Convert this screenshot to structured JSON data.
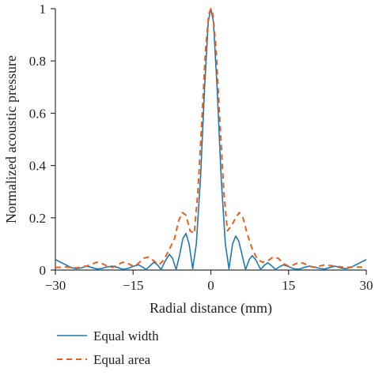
{
  "chart_data": {
    "type": "line",
    "title": "",
    "xlabel": "Radial distance (mm)",
    "ylabel": "Normalized acoustic pressure",
    "xlim": [
      -30,
      30
    ],
    "ylim": [
      0,
      1
    ],
    "x_ticks": [
      -30,
      -15,
      0,
      15,
      30
    ],
    "x_tick_labels": [
      "−30",
      "−15",
      "0",
      "15",
      "30"
    ],
    "y_ticks": [
      0,
      0.2,
      0.4,
      0.6,
      0.8,
      1
    ],
    "y_tick_labels": [
      "0",
      "0.2",
      "0.4",
      "0.6",
      "0.8",
      "1"
    ],
    "grid": false,
    "legend_position": "bottom-left",
    "series": [
      {
        "name": "Equal width",
        "color": "#1f77b4",
        "style": "solid",
        "points": [
          [
            -30,
            0.04
          ],
          [
            -29,
            0.03
          ],
          [
            -28,
            0.02
          ],
          [
            -27,
            0.01
          ],
          [
            -26,
            0.005
          ],
          [
            -25,
            0.008
          ],
          [
            -24,
            0.015
          ],
          [
            -23,
            0.01
          ],
          [
            -22,
            0.004
          ],
          [
            -21,
            0.006
          ],
          [
            -20,
            0.012
          ],
          [
            -19,
            0.015
          ],
          [
            -18,
            0.01
          ],
          [
            -17,
            0.003
          ],
          [
            -16,
            0.006
          ],
          [
            -15,
            0.014
          ],
          [
            -14,
            0.02
          ],
          [
            -13.2,
            0.012
          ],
          [
            -12.5,
            0.002
          ],
          [
            -11.8,
            0.015
          ],
          [
            -11,
            0.03
          ],
          [
            -10.3,
            0.02
          ],
          [
            -9.6,
            0.002
          ],
          [
            -8.8,
            0.035
          ],
          [
            -8,
            0.06
          ],
          [
            -7.4,
            0.045
          ],
          [
            -6.7,
            0.002
          ],
          [
            -6,
            0.06
          ],
          [
            -5.4,
            0.12
          ],
          [
            -4.8,
            0.14
          ],
          [
            -4.2,
            0.1
          ],
          [
            -3.5,
            0.005
          ],
          [
            -2.8,
            0.1
          ],
          [
            -2,
            0.35
          ],
          [
            -1.2,
            0.7
          ],
          [
            -0.5,
            0.95
          ],
          [
            0,
            1
          ],
          [
            0.5,
            0.95
          ],
          [
            1.2,
            0.7
          ],
          [
            2,
            0.35
          ],
          [
            2.8,
            0.1
          ],
          [
            3.5,
            0.005
          ],
          [
            4.2,
            0.1
          ],
          [
            4.8,
            0.13
          ],
          [
            5.4,
            0.11
          ],
          [
            6,
            0.06
          ],
          [
            6.7,
            0.002
          ],
          [
            7.4,
            0.04
          ],
          [
            8,
            0.055
          ],
          [
            8.8,
            0.035
          ],
          [
            9.6,
            0.002
          ],
          [
            10.3,
            0.018
          ],
          [
            11,
            0.028
          ],
          [
            11.8,
            0.015
          ],
          [
            12.5,
            0.002
          ],
          [
            13.2,
            0.012
          ],
          [
            14,
            0.02
          ],
          [
            15,
            0.013
          ],
          [
            16,
            0.005
          ],
          [
            17,
            0.003
          ],
          [
            18,
            0.01
          ],
          [
            19,
            0.015
          ],
          [
            20,
            0.012
          ],
          [
            21,
            0.006
          ],
          [
            22,
            0.004
          ],
          [
            23,
            0.01
          ],
          [
            24,
            0.015
          ],
          [
            25,
            0.008
          ],
          [
            26,
            0.005
          ],
          [
            27,
            0.01
          ],
          [
            28,
            0.02
          ],
          [
            29,
            0.03
          ],
          [
            30,
            0.04
          ]
        ]
      },
      {
        "name": "Equal area",
        "color": "#e8601c",
        "style": "dashed",
        "points": [
          [
            -30,
            0.01
          ],
          [
            -28,
            0.012
          ],
          [
            -26,
            0.008
          ],
          [
            -24,
            0.015
          ],
          [
            -22,
            0.03
          ],
          [
            -21,
            0.025
          ],
          [
            -20,
            0.015
          ],
          [
            -19,
            0.01
          ],
          [
            -18,
            0.02
          ],
          [
            -17,
            0.03
          ],
          [
            -16,
            0.025
          ],
          [
            -15,
            0.015
          ],
          [
            -14,
            0.025
          ],
          [
            -13,
            0.045
          ],
          [
            -12,
            0.05
          ],
          [
            -11,
            0.035
          ],
          [
            -10,
            0.02
          ],
          [
            -9,
            0.04
          ],
          [
            -8,
            0.08
          ],
          [
            -7,
            0.12
          ],
          [
            -6.2,
            0.19
          ],
          [
            -5.5,
            0.22
          ],
          [
            -4.8,
            0.21
          ],
          [
            -4,
            0.15
          ],
          [
            -3.2,
            0.14
          ],
          [
            -2.5,
            0.3
          ],
          [
            -1.8,
            0.55
          ],
          [
            -1,
            0.85
          ],
          [
            -0.4,
            0.98
          ],
          [
            0,
            1
          ],
          [
            0.4,
            0.98
          ],
          [
            1,
            0.85
          ],
          [
            1.8,
            0.55
          ],
          [
            2.5,
            0.3
          ],
          [
            3.2,
            0.15
          ],
          [
            4,
            0.17
          ],
          [
            4.8,
            0.2
          ],
          [
            5.5,
            0.22
          ],
          [
            6.2,
            0.2
          ],
          [
            7,
            0.14
          ],
          [
            8,
            0.08
          ],
          [
            9,
            0.04
          ],
          [
            10,
            0.03
          ],
          [
            11,
            0.035
          ],
          [
            12,
            0.05
          ],
          [
            13,
            0.045
          ],
          [
            14,
            0.025
          ],
          [
            15,
            0.015
          ],
          [
            16,
            0.02
          ],
          [
            17,
            0.03
          ],
          [
            18,
            0.025
          ],
          [
            19,
            0.015
          ],
          [
            20,
            0.01
          ],
          [
            22,
            0.02
          ],
          [
            24,
            0.015
          ],
          [
            26,
            0.01
          ],
          [
            28,
            0.012
          ],
          [
            30,
            0.01
          ]
        ]
      }
    ]
  }
}
